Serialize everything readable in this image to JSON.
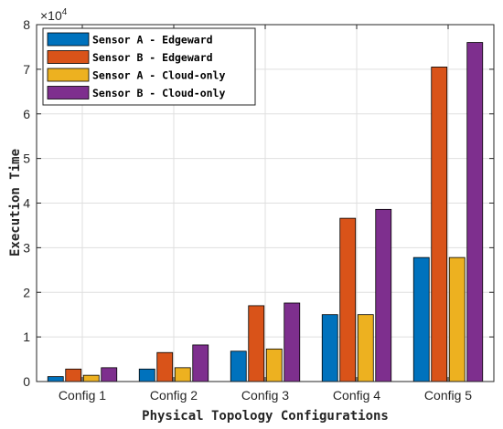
{
  "chart_data": {
    "type": "bar",
    "categories": [
      "Config 1",
      "Config 2",
      "Config 3",
      "Config 4",
      "Config 5"
    ],
    "series": [
      {
        "name": "Sensor A - Edgeward",
        "color": "#0072BD",
        "values": [
          1100,
          2800,
          6800,
          15000,
          27800
        ]
      },
      {
        "name": "Sensor B - Edgeward",
        "color": "#D95319",
        "values": [
          2800,
          6500,
          17000,
          36600,
          70500
        ]
      },
      {
        "name": "Sensor A - Cloud-only",
        "color": "#EDB120",
        "values": [
          1400,
          3100,
          7300,
          15000,
          27800
        ]
      },
      {
        "name": "Sensor B - Cloud-only",
        "color": "#7E2F8E",
        "values": [
          3100,
          8200,
          17600,
          38600,
          76000
        ]
      }
    ],
    "xlabel": "Physical Topology Configurations",
    "ylabel": "Execution Time",
    "ylim": [
      0,
      80000
    ],
    "yticks": [
      0,
      10000,
      20000,
      30000,
      40000,
      50000,
      60000,
      70000,
      80000
    ],
    "ytick_labels": [
      "0",
      "1",
      "2",
      "3",
      "4",
      "5",
      "6",
      "7",
      "8"
    ],
    "y_multiplier": {
      "prefix": "×10",
      "exponent": "4"
    },
    "grid": true,
    "legend_placement": "top-left"
  }
}
